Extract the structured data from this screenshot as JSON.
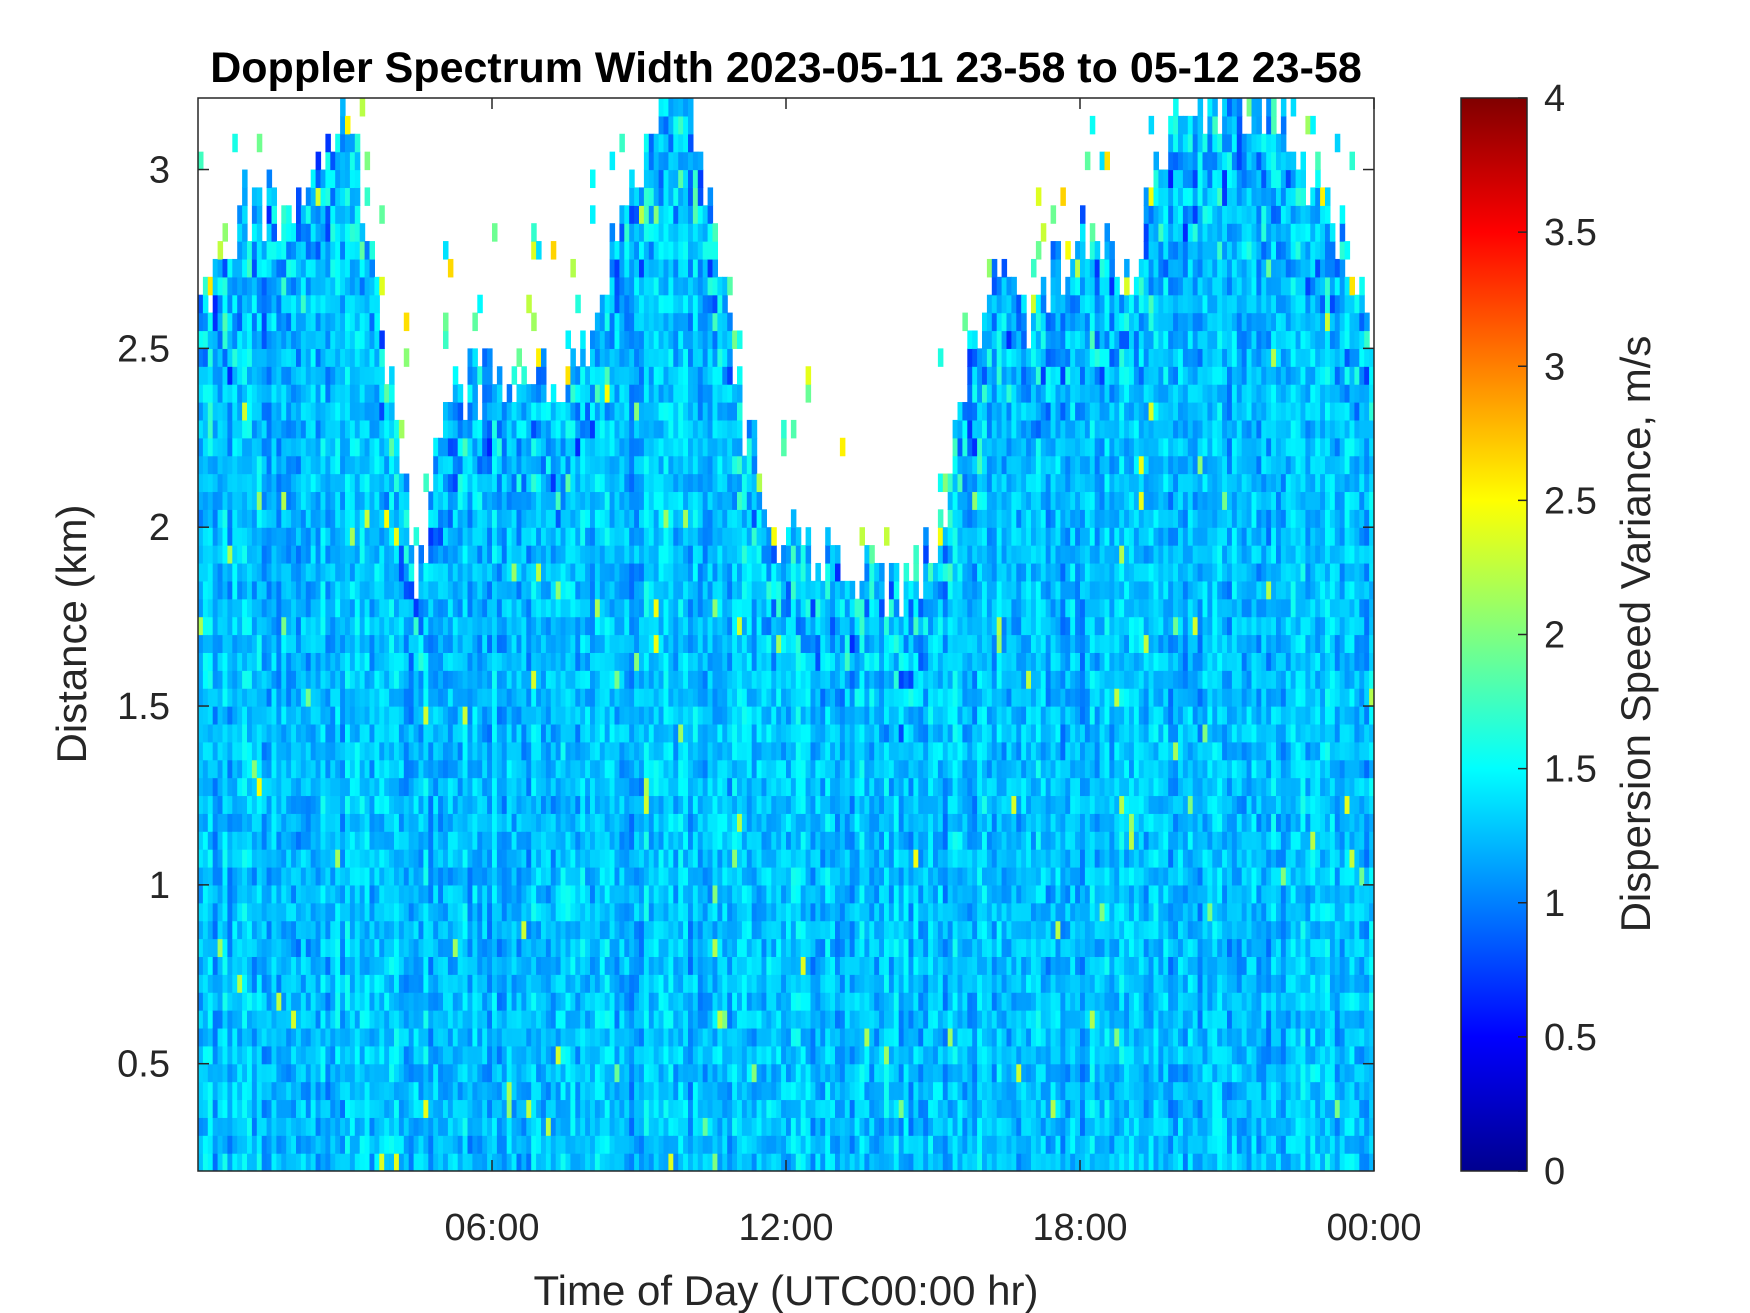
{
  "chart_data": {
    "type": "heatmap",
    "title": "Doppler Spectrum Width 2023-05-11 23-58 to 05-12 23-58",
    "xlabel": "Time of Day (UTC00:00 hr)",
    "ylabel": "Distance (km)",
    "xlim": [
      0,
      24
    ],
    "ylim": [
      0.2,
      3.2
    ],
    "x_ticks": [
      6,
      12,
      18,
      24
    ],
    "x_tick_labels": [
      "06:00",
      "12:00",
      "18:00",
      "00:00"
    ],
    "y_ticks": [
      0.5,
      1,
      1.5,
      2,
      2.5,
      3
    ],
    "y_tick_labels": [
      "0.5",
      "1",
      "1.5",
      "2",
      "2.5",
      "3"
    ],
    "colormap": "jet",
    "colorbar": {
      "label": "Dispersion Speed Variance, m/s",
      "limits": [
        0,
        4
      ],
      "ticks": [
        0,
        0.5,
        1,
        1.5,
        2,
        2.5,
        3,
        3.5,
        4
      ],
      "tick_labels": [
        "0",
        "0.5",
        "1",
        "1.5",
        "2",
        "2.5",
        "3",
        "3.5",
        "4"
      ]
    },
    "typical_value": 1.25,
    "signal_top_profile": {
      "time_hr": [
        0,
        1,
        2,
        3,
        3.5,
        4,
        4.5,
        5,
        5.5,
        6,
        7,
        8,
        8.5,
        9,
        9.5,
        10,
        10.5,
        11,
        11.5,
        12,
        13,
        14,
        14.5,
        15,
        15.5,
        16,
        16.5,
        17,
        18,
        19,
        20,
        21,
        22,
        23,
        24
      ],
      "top_km": [
        2.6,
        2.9,
        2.9,
        3.2,
        2.8,
        2.3,
        1.8,
        2.3,
        2.4,
        2.4,
        2.4,
        2.5,
        2.8,
        3.0,
        3.2,
        3.2,
        2.9,
        2.4,
        2.1,
        1.95,
        1.9,
        1.85,
        1.85,
        1.9,
        2.3,
        2.6,
        2.8,
        2.6,
        2.8,
        2.7,
        3.2,
        3.2,
        3.2,
        2.9,
        2.6
      ]
    },
    "grid": false
  }
}
